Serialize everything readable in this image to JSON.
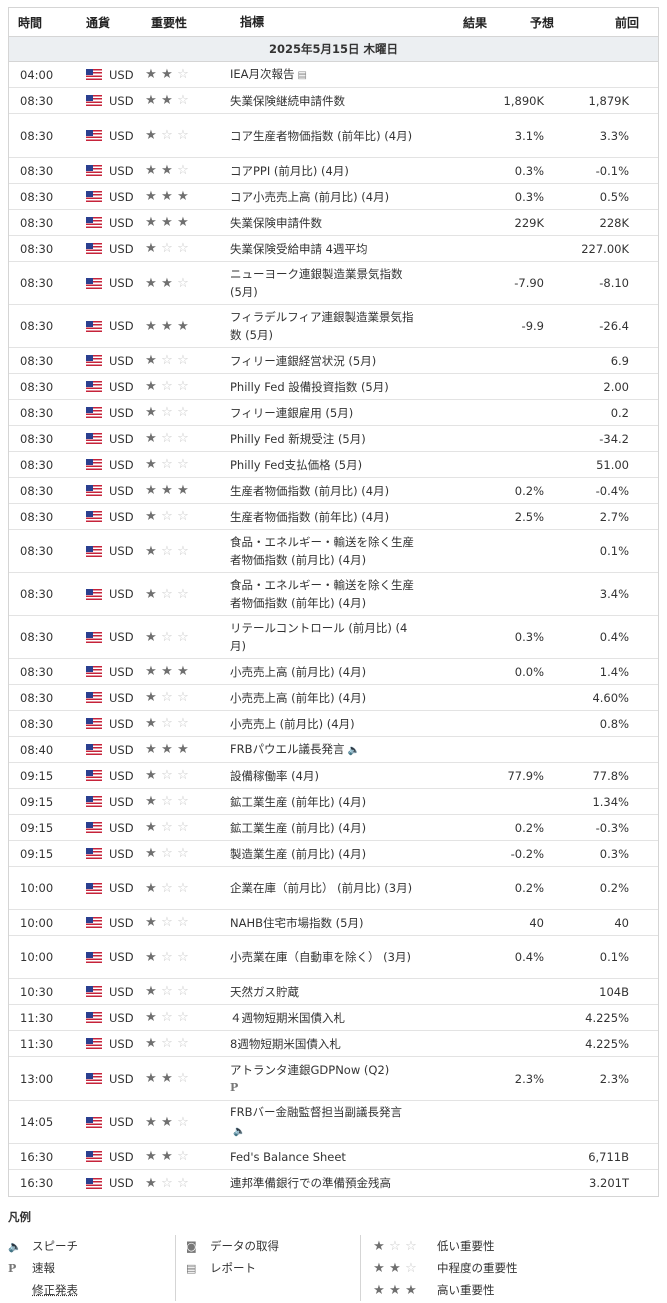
{
  "header": {
    "time": "時間",
    "currency": "通貨",
    "importance": "重要性",
    "event": "指標",
    "actual": "結果",
    "forecast": "予想",
    "previous": "前回"
  },
  "date": "2025年5月15日 木曜日",
  "rows": [
    {
      "time": "04:00",
      "currency": "USD",
      "stars": 2,
      "event": "IEA月次報告",
      "icon": "report-icon",
      "actual": "",
      "forecast": "",
      "previous": "",
      "h": 26
    },
    {
      "time": "08:30",
      "currency": "USD",
      "stars": 2,
      "event": "失業保険継続申請件数",
      "actual": "",
      "forecast": "1,890K",
      "previous": "1,879K",
      "h": 26
    },
    {
      "time": "08:30",
      "currency": "USD",
      "stars": 1,
      "event": "コア生産者物価指数 (前年比) (4月)",
      "actual": "",
      "forecast": "3.1%",
      "previous": "3.3%",
      "h": 44
    },
    {
      "time": "08:30",
      "currency": "USD",
      "stars": 2,
      "event": "コアPPI (前月比) (4月)",
      "actual": "",
      "forecast": "0.3%",
      "previous": "-0.1%",
      "h": 26
    },
    {
      "time": "08:30",
      "currency": "USD",
      "stars": 3,
      "event": "コア小売売上高 (前月比) (4月)",
      "actual": "",
      "forecast": "0.3%",
      "previous": "0.5%",
      "h": 26
    },
    {
      "time": "08:30",
      "currency": "USD",
      "stars": 3,
      "event": "失業保険申請件数",
      "actual": "",
      "forecast": "229K",
      "previous": "228K",
      "h": 26
    },
    {
      "time": "08:30",
      "currency": "USD",
      "stars": 1,
      "event": "失業保険受給申請 4週平均",
      "actual": "",
      "forecast": "",
      "previous": "227.00K",
      "h": 26
    },
    {
      "time": "08:30",
      "currency": "USD",
      "stars": 2,
      "event": "ニューヨーク連銀製造業景気指数 (5月)",
      "actual": "",
      "forecast": "-7.90",
      "previous": "-8.10",
      "h": 43
    },
    {
      "time": "08:30",
      "currency": "USD",
      "stars": 3,
      "event": "フィラデルフィア連銀製造業景気指数 (5月)",
      "actual": "",
      "forecast": "-9.9",
      "previous": "-26.4",
      "h": 43
    },
    {
      "time": "08:30",
      "currency": "USD",
      "stars": 1,
      "event": "フィリー連銀経営状況 (5月)",
      "actual": "",
      "forecast": "",
      "previous": "6.9",
      "h": 26
    },
    {
      "time": "08:30",
      "currency": "USD",
      "stars": 1,
      "event": "Philly Fed 設備投資指数 (5月)",
      "actual": "",
      "forecast": "",
      "previous": "2.00",
      "h": 26
    },
    {
      "time": "08:30",
      "currency": "USD",
      "stars": 1,
      "event": "フィリー連銀雇用 (5月)",
      "actual": "",
      "forecast": "",
      "previous": "0.2",
      "h": 26
    },
    {
      "time": "08:30",
      "currency": "USD",
      "stars": 1,
      "event": "Philly Fed 新規受注 (5月)",
      "actual": "",
      "forecast": "",
      "previous": "-34.2",
      "h": 26
    },
    {
      "time": "08:30",
      "currency": "USD",
      "stars": 1,
      "event": "Philly Fed支払価格 (5月)",
      "actual": "",
      "forecast": "",
      "previous": "51.00",
      "h": 26
    },
    {
      "time": "08:30",
      "currency": "USD",
      "stars": 3,
      "event": "生産者物価指数 (前月比) (4月)",
      "actual": "",
      "forecast": "0.2%",
      "previous": "-0.4%",
      "h": 26
    },
    {
      "time": "08:30",
      "currency": "USD",
      "stars": 1,
      "event": "生産者物価指数 (前年比) (4月)",
      "actual": "",
      "forecast": "2.5%",
      "previous": "2.7%",
      "h": 26
    },
    {
      "time": "08:30",
      "currency": "USD",
      "stars": 1,
      "event": "食品・エネルギー・輸送を除く生産者物価指数 (前月比) (4月)",
      "actual": "",
      "forecast": "",
      "previous": "0.1%",
      "h": 43
    },
    {
      "time": "08:30",
      "currency": "USD",
      "stars": 1,
      "event": "食品・エネルギー・輸送を除く生産者物価指数 (前年比) (4月)",
      "actual": "",
      "forecast": "",
      "previous": "3.4%",
      "h": 43
    },
    {
      "time": "08:30",
      "currency": "USD",
      "stars": 1,
      "event": "リテールコントロール (前月比) (4月)",
      "actual": "",
      "forecast": "0.3%",
      "previous": "0.4%",
      "h": 43
    },
    {
      "time": "08:30",
      "currency": "USD",
      "stars": 3,
      "event": "小売売上高 (前月比) (4月)",
      "actual": "",
      "forecast": "0.0%",
      "previous": "1.4%",
      "h": 26
    },
    {
      "time": "08:30",
      "currency": "USD",
      "stars": 1,
      "event": "小売売上高 (前年比) (4月)",
      "actual": "",
      "forecast": "",
      "previous": "4.60%",
      "h": 26
    },
    {
      "time": "08:30",
      "currency": "USD",
      "stars": 1,
      "event": "小売売上 (前月比) (4月)",
      "actual": "",
      "forecast": "",
      "previous": "0.8%",
      "h": 26
    },
    {
      "time": "08:40",
      "currency": "USD",
      "stars": 3,
      "event": "FRBパウエル議長発言",
      "icon": "speaker-icon",
      "actual": "",
      "forecast": "",
      "previous": "",
      "h": 26
    },
    {
      "time": "09:15",
      "currency": "USD",
      "stars": 1,
      "event": "設備稼働率 (4月)",
      "actual": "",
      "forecast": "77.9%",
      "previous": "77.8%",
      "h": 26
    },
    {
      "time": "09:15",
      "currency": "USD",
      "stars": 1,
      "event": "鉱工業生産 (前年比) (4月)",
      "actual": "",
      "forecast": "",
      "previous": "1.34%",
      "h": 26
    },
    {
      "time": "09:15",
      "currency": "USD",
      "stars": 1,
      "event": "鉱工業生産 (前月比) (4月)",
      "actual": "",
      "forecast": "0.2%",
      "previous": "-0.3%",
      "h": 26
    },
    {
      "time": "09:15",
      "currency": "USD",
      "stars": 1,
      "event": "製造業生産 (前月比) (4月)",
      "actual": "",
      "forecast": "-0.2%",
      "previous": "0.3%",
      "h": 26
    },
    {
      "time": "10:00",
      "currency": "USD",
      "stars": 1,
      "event": "企業在庫（前月比） (前月比) (3月)",
      "actual": "",
      "forecast": "0.2%",
      "previous": "0.2%",
      "h": 43
    },
    {
      "time": "10:00",
      "currency": "USD",
      "stars": 1,
      "event": "NAHB住宅市場指数 (5月)",
      "actual": "",
      "forecast": "40",
      "previous": "40",
      "h": 26
    },
    {
      "time": "10:00",
      "currency": "USD",
      "stars": 1,
      "event": "小売業在庫（自動車を除く） (3月)",
      "actual": "",
      "forecast": "0.4%",
      "previous": "0.1%",
      "h": 43
    },
    {
      "time": "10:30",
      "currency": "USD",
      "stars": 1,
      "event": "天然ガス貯蔵",
      "actual": "",
      "forecast": "",
      "previous": "104B",
      "h": 26
    },
    {
      "time": "11:30",
      "currency": "USD",
      "stars": 1,
      "event": "４週物短期米国債入札",
      "actual": "",
      "forecast": "",
      "previous": "4.225%",
      "h": 26
    },
    {
      "time": "11:30",
      "currency": "USD",
      "stars": 1,
      "event": "8週物短期米国債入札",
      "actual": "",
      "forecast": "",
      "previous": "4.225%",
      "h": 26
    },
    {
      "time": "13:00",
      "currency": "USD",
      "stars": 2,
      "event": "アトランタ連銀GDPNow (Q2)",
      "icon": "preliminary-icon",
      "actual": "",
      "forecast": "2.3%",
      "previous": "2.3%",
      "h": 44
    },
    {
      "time": "14:05",
      "currency": "USD",
      "stars": 2,
      "event": "FRBバー金融監督担当副議長発言",
      "icon": "speaker-icon",
      "actual": "",
      "forecast": "",
      "previous": "",
      "h": 43
    },
    {
      "time": "16:30",
      "currency": "USD",
      "stars": 2,
      "event": "Fed's Balance Sheet",
      "actual": "",
      "forecast": "",
      "previous": "6,711B",
      "h": 26
    },
    {
      "time": "16:30",
      "currency": "USD",
      "stars": 1,
      "event": "連邦準備銀行での準備預金残高",
      "actual": "",
      "forecast": "",
      "previous": "3.201T",
      "h": 26
    }
  ],
  "legend": {
    "title": "凡例",
    "speech": "スピーチ",
    "preliminary": "速報",
    "revised": "修正発表",
    "data": "データの取得",
    "report": "レポート",
    "low": "低い重要性",
    "medium": "中程度の重要性",
    "high": "高い重要性"
  },
  "colors": {
    "header_bg": "#eceff2",
    "border": "#d5d5d5",
    "star_on": "#707070",
    "star_off": "#c9c9c9"
  }
}
